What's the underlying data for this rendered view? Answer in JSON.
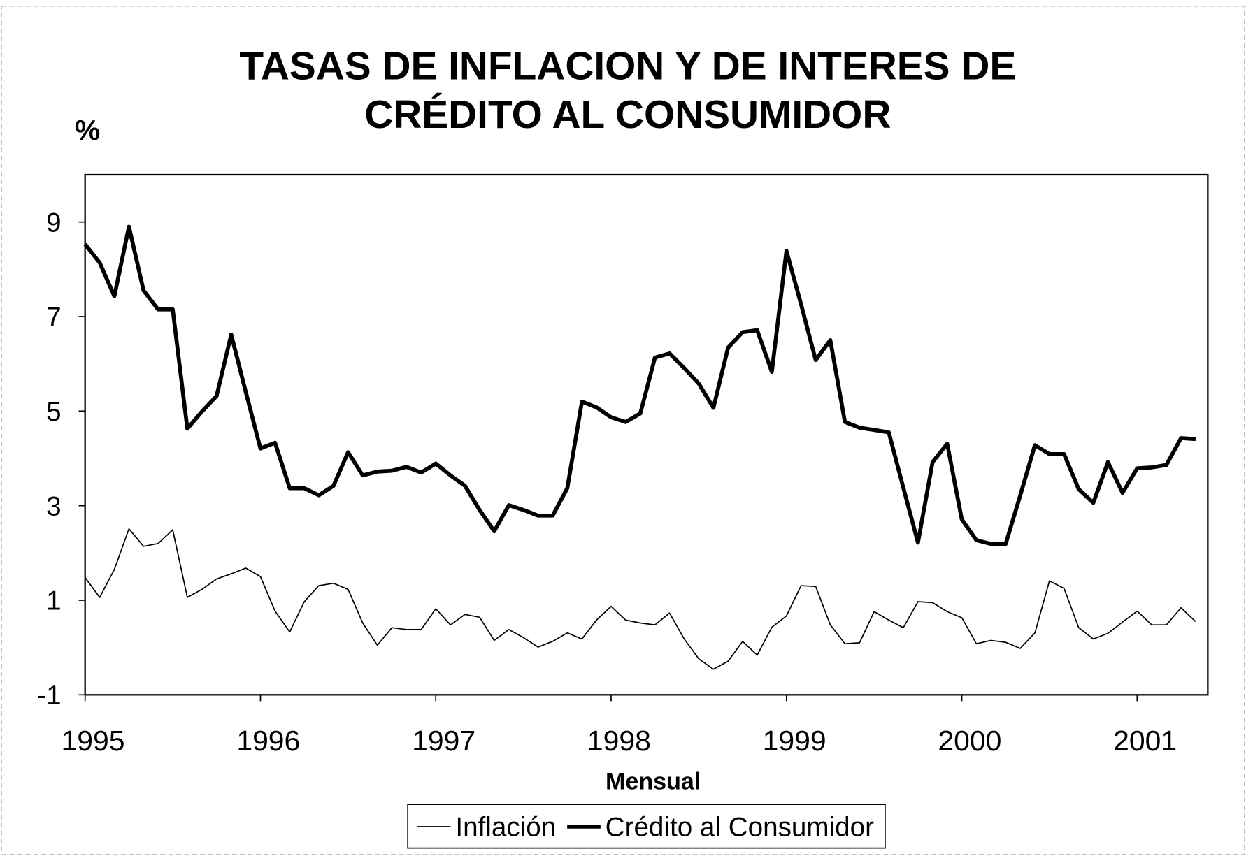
{
  "chart_data": {
    "type": "line",
    "title": [
      "TASAS DE INFLACION Y DE INTERES DE",
      "CRÉDITO AL CONSUMIDOR"
    ],
    "y_label": "%",
    "x_label": "Mensual",
    "categories": [
      "1995",
      null,
      null,
      null,
      null,
      null,
      null,
      null,
      null,
      null,
      null,
      null,
      "1996",
      null,
      null,
      null,
      null,
      null,
      null,
      null,
      null,
      null,
      null,
      null,
      "1997",
      null,
      null,
      null,
      null,
      null,
      null,
      null,
      null,
      null,
      null,
      null,
      "1998",
      null,
      null,
      null,
      null,
      null,
      null,
      null,
      null,
      null,
      null,
      null,
      "1999",
      null,
      null,
      null,
      null,
      null,
      null,
      null,
      null,
      null,
      null,
      null,
      "2000",
      null,
      null,
      null,
      null,
      null,
      null,
      null,
      null,
      null,
      null,
      null,
      "2001",
      null,
      null,
      null,
      null
    ],
    "ylim": [
      -1,
      10
    ],
    "yticks": [
      -1,
      1,
      3,
      5,
      7,
      9
    ],
    "grid": false,
    "legend": "bottom",
    "series": [
      {
        "name": "Inflación",
        "color": "#000000",
        "width": 1.5,
        "values": [
          1.48,
          1.06,
          1.65,
          2.51,
          2.14,
          2.2,
          2.49,
          1.06,
          1.23,
          1.45,
          1.56,
          1.68,
          1.5,
          0.77,
          0.33,
          0.97,
          1.31,
          1.36,
          1.23,
          0.52,
          0.05,
          0.42,
          0.38,
          0.38,
          0.82,
          0.48,
          0.7,
          0.64,
          0.15,
          0.38,
          0.21,
          0.01,
          0.13,
          0.31,
          0.18,
          0.58,
          0.87,
          0.58,
          0.52,
          0.48,
          0.73,
          0.18,
          -0.24,
          -0.46,
          -0.29,
          0.13,
          -0.16,
          0.43,
          0.67,
          1.31,
          1.29,
          0.48,
          0.08,
          0.1,
          0.76,
          0.58,
          0.42,
          0.97,
          0.95,
          0.76,
          0.63,
          0.08,
          0.15,
          0.11,
          -0.02,
          0.31,
          1.41,
          1.25,
          0.42,
          0.18,
          0.3,
          0.54,
          0.77,
          0.48,
          0.48,
          0.84,
          0.55
        ]
      },
      {
        "name": "Crédito al Consumidor",
        "color": "#000000",
        "width": 5,
        "values": [
          8.53,
          8.14,
          7.43,
          8.9,
          7.55,
          7.15,
          7.15,
          4.63,
          4.99,
          5.32,
          6.62,
          5.4,
          4.21,
          4.33,
          3.37,
          3.37,
          3.22,
          3.42,
          4.13,
          3.64,
          3.72,
          3.74,
          3.82,
          3.7,
          3.89,
          3.64,
          3.42,
          2.91,
          2.46,
          3.01,
          2.91,
          2.79,
          2.79,
          3.37,
          5.2,
          5.08,
          4.87,
          4.77,
          4.95,
          6.13,
          6.22,
          5.91,
          5.58,
          5.07,
          6.34,
          6.67,
          6.71,
          5.83,
          8.39,
          7.26,
          6.08,
          6.5,
          4.77,
          4.65,
          4.6,
          4.55,
          3.38,
          2.22,
          3.92,
          4.31,
          2.71,
          2.27,
          2.19,
          2.19,
          3.22,
          4.28,
          4.09,
          4.09,
          3.35,
          3.06,
          3.92,
          3.27,
          3.79,
          3.81,
          3.86,
          4.43,
          4.41
        ]
      }
    ]
  }
}
